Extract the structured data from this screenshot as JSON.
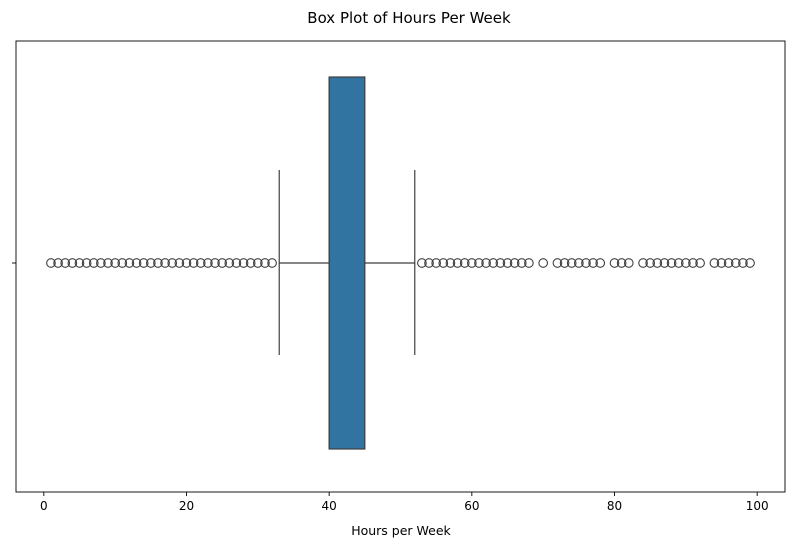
{
  "chart_data": {
    "type": "box",
    "title": "Box Plot of Hours Per Week",
    "xlabel": "Hours per Week",
    "ylabel": "",
    "xlim": [
      -3.9,
      103.9
    ],
    "xticks": [
      0,
      20,
      40,
      60,
      80,
      100
    ],
    "xtick_labels": [
      "0",
      "20",
      "40",
      "60",
      "80",
      "100"
    ],
    "grid": false,
    "orientation": "horizontal",
    "box": {
      "whisker_low": 33,
      "q1": 40,
      "median": 40,
      "q3": 45,
      "whisker_high": 52
    },
    "outliers": [
      1,
      2,
      3,
      4,
      5,
      6,
      7,
      8,
      9,
      10,
      11,
      12,
      13,
      14,
      15,
      16,
      17,
      18,
      19,
      20,
      21,
      22,
      23,
      24,
      25,
      26,
      27,
      28,
      29,
      30,
      31,
      32,
      53,
      54,
      55,
      56,
      57,
      58,
      59,
      60,
      61,
      62,
      63,
      64,
      65,
      66,
      67,
      68,
      70,
      72,
      73,
      74,
      75,
      76,
      77,
      78,
      80,
      81,
      82,
      84,
      85,
      86,
      87,
      88,
      89,
      90,
      91,
      92,
      94,
      95,
      96,
      97,
      98,
      99
    ],
    "colors": {
      "box_fill": "#3274a1",
      "line": "#3f3f3f",
      "outlier_edge": "#3f3f3f"
    }
  }
}
